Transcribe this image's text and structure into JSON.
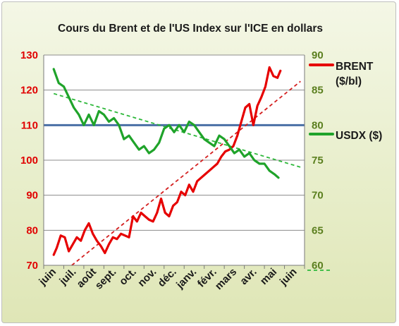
{
  "chart_data": {
    "type": "line",
    "title": "Cours du Brent  et de l'US Index sur l'ICE  en dollars",
    "x_labels": [
      "juin",
      "juil.",
      "août",
      "sept.",
      "oct.",
      "nov.",
      "déc.",
      "janv.",
      "févr.",
      "mars",
      "avr.",
      "mai",
      "juin"
    ],
    "left_axis": {
      "min": 70,
      "max": 130,
      "step": 10,
      "color": "#e00000"
    },
    "right_axis": {
      "min": 60,
      "max": 90,
      "step": 5,
      "color": "#5b7f1f"
    },
    "grid": true,
    "series": [
      {
        "name": "BRENT ($/bl)",
        "name_lines": [
          "BRENT",
          "($/bl)"
        ],
        "axis": "left",
        "color": "#e60000",
        "x": [
          0,
          0.15,
          0.35,
          0.55,
          0.75,
          0.95,
          1.15,
          1.35,
          1.55,
          1.75,
          1.95,
          2.15,
          2.35,
          2.55,
          2.75,
          2.95,
          3.15,
          3.35,
          3.55,
          3.75,
          3.95,
          4.15,
          4.35,
          4.55,
          4.75,
          4.95,
          5.15,
          5.35,
          5.55,
          5.75,
          5.95,
          6.15,
          6.35,
          6.55,
          6.75,
          6.95,
          7.15,
          7.35,
          7.55,
          7.75,
          7.95,
          8.15,
          8.35,
          8.55,
          8.75,
          8.95,
          9.15,
          9.35,
          9.55,
          9.75,
          9.95,
          10.15,
          10.35,
          10.55,
          10.75,
          10.95,
          11.15,
          11.3
        ],
        "values": [
          73,
          75,
          78.5,
          78,
          74,
          76,
          78,
          77,
          80,
          82,
          79,
          77,
          75.5,
          73.5,
          76,
          78,
          77.5,
          79,
          78.5,
          78,
          84,
          82.5,
          85,
          84,
          83,
          82.5,
          85,
          89,
          85,
          84,
          87,
          88,
          91,
          90,
          93,
          91,
          94,
          95,
          96,
          97,
          98,
          99,
          101,
          102.5,
          103,
          104,
          107,
          111,
          115,
          116,
          110,
          115.5,
          118,
          121,
          126.5,
          124,
          123.5,
          125.5
        ]
      },
      {
        "name": "USDX ($)",
        "name_lines": [
          "USDX ($)"
        ],
        "axis": "right",
        "color": "#1fa32a",
        "x": [
          0,
          0.25,
          0.5,
          0.75,
          1.0,
          1.25,
          1.5,
          1.75,
          2.0,
          2.25,
          2.5,
          2.75,
          3.0,
          3.25,
          3.5,
          3.75,
          4.0,
          4.25,
          4.5,
          4.75,
          5.0,
          5.25,
          5.5,
          5.75,
          6.0,
          6.25,
          6.5,
          6.75,
          7.0,
          7.25,
          7.5,
          7.75,
          8.0,
          8.25,
          8.5,
          8.75,
          9.0,
          9.25,
          9.5,
          9.75,
          10.0,
          10.25,
          10.5,
          10.75,
          11.0,
          11.2
        ],
        "values": [
          88,
          86,
          85.5,
          84,
          82.5,
          81.5,
          80,
          81.5,
          80,
          82,
          81.5,
          80.5,
          81,
          80,
          78,
          78.5,
          77.5,
          76.5,
          77,
          76,
          76.5,
          77.5,
          79.5,
          80,
          79,
          80,
          79,
          80.5,
          80,
          79,
          78,
          77.5,
          77,
          78.5,
          78,
          77,
          76,
          76.5,
          75.5,
          76,
          75,
          74.5,
          74.5,
          73.5,
          73,
          72.5
        ]
      }
    ],
    "reference_lines": [
      {
        "kind": "horizontal",
        "axis": "left",
        "value": 110,
        "color": "#4a6fa5"
      },
      {
        "kind": "trend",
        "axis": "left",
        "x0": 0.9,
        "y0": 70,
        "x1": 12.3,
        "y1": 122.5,
        "color": "#d42020"
      },
      {
        "kind": "trend",
        "axis": "right",
        "x0": 0,
        "y0": 84.5,
        "x1": 12.3,
        "y1": 74,
        "color": "#2db83a"
      }
    ]
  }
}
